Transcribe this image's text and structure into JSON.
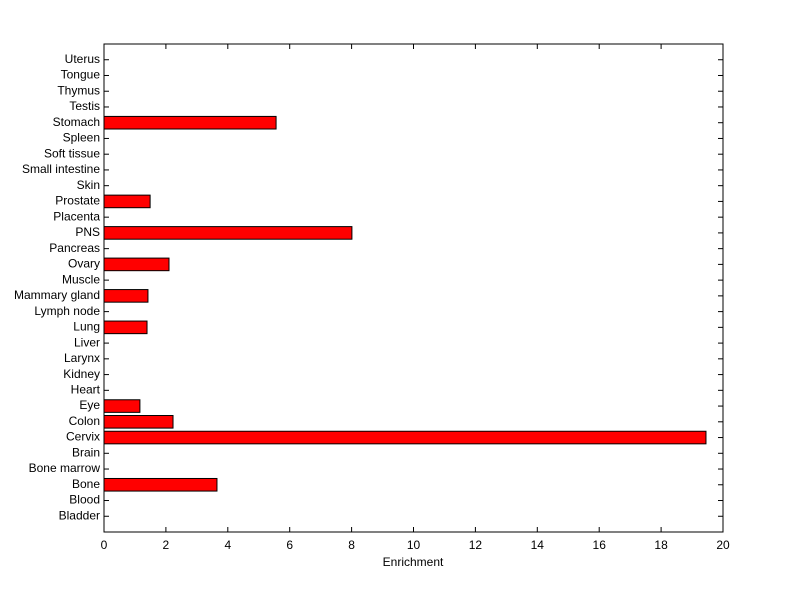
{
  "chart_data": {
    "type": "barh",
    "x_label": "Enrichment",
    "categories": [
      "Bladder",
      "Blood",
      "Bone",
      "Bone marrow",
      "Brain",
      "Cervix",
      "Colon",
      "Eye",
      "Heart",
      "Kidney",
      "Larynx",
      "Liver",
      "Lung",
      "Lymph node",
      "Mammary gland",
      "Muscle",
      "Ovary",
      "Pancreas",
      "PNS",
      "Placenta",
      "Prostate",
      "Skin",
      "Small intestine",
      "Soft tissue",
      "Spleen",
      "Stomach",
      "Testis",
      "Thymus",
      "Tongue",
      "Uterus"
    ],
    "values": [
      0,
      0,
      3.65,
      0,
      0,
      19.45,
      2.23,
      1.16,
      0,
      0,
      0,
      0,
      1.39,
      0,
      1.42,
      0,
      2.1,
      0,
      8.01,
      0,
      1.49,
      0,
      0,
      0,
      0,
      5.56,
      0,
      0,
      0,
      0
    ],
    "color": "#ff0000",
    "xlim": [
      0,
      20
    ],
    "xticks": [
      0,
      2,
      4,
      6,
      8,
      10,
      12,
      14,
      16,
      18,
      20
    ]
  }
}
